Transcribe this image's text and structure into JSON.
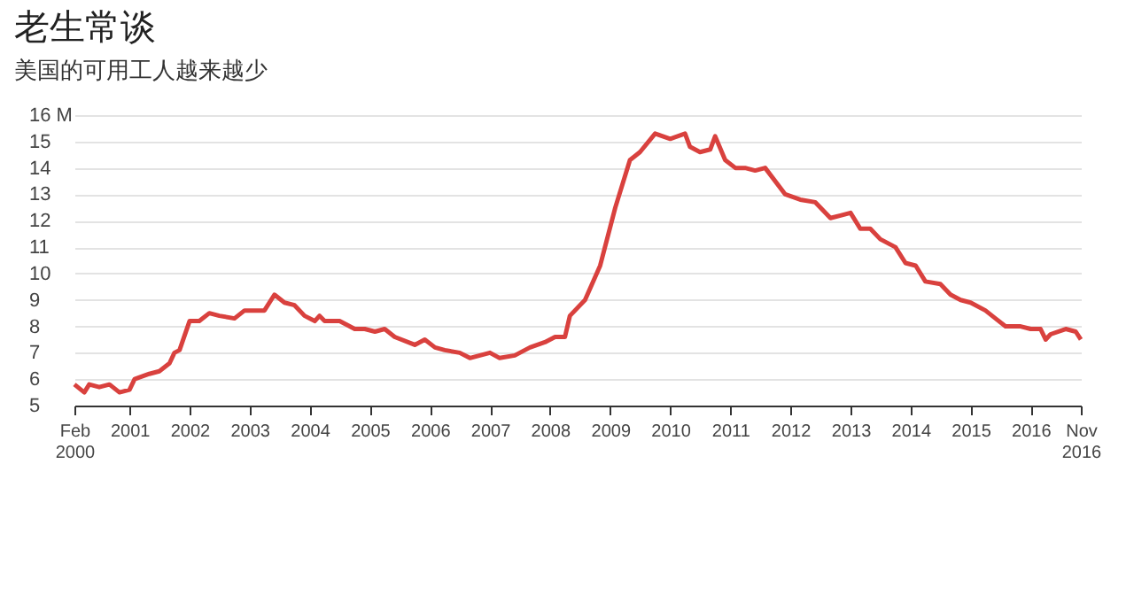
{
  "chart_data": {
    "type": "line",
    "title": "老生常谈",
    "subtitle": "美国的可用工人越来越少",
    "x": [
      "2000-02",
      "2000-04",
      "2000-05",
      "2000-07",
      "2000-09",
      "2000-11",
      "2001-01",
      "2001-02",
      "2001-05",
      "2001-07",
      "2001-09",
      "2001-10",
      "2001-11",
      "2002-01",
      "2002-03",
      "2002-05",
      "2002-07",
      "2002-10",
      "2002-12",
      "2003-02",
      "2003-04",
      "2003-06",
      "2003-08",
      "2003-10",
      "2003-12",
      "2004-02",
      "2004-03",
      "2004-04",
      "2004-07",
      "2004-10",
      "2004-12",
      "2005-02",
      "2005-04",
      "2005-06",
      "2005-10",
      "2005-12",
      "2006-02",
      "2006-04",
      "2006-07",
      "2006-09",
      "2006-11",
      "2007-01",
      "2007-03",
      "2007-06",
      "2007-09",
      "2007-12",
      "2008-02",
      "2008-04",
      "2008-05",
      "2008-08",
      "2008-11",
      "2009-02",
      "2009-05",
      "2009-07",
      "2009-10",
      "2010-01",
      "2010-04",
      "2010-05",
      "2010-07",
      "2010-09",
      "2010-10",
      "2010-12",
      "2011-02",
      "2011-04",
      "2011-06",
      "2011-08",
      "2011-12",
      "2012-03",
      "2012-06",
      "2012-09",
      "2012-11",
      "2013-01",
      "2013-03",
      "2013-05",
      "2013-07",
      "2013-10",
      "2013-12",
      "2014-02",
      "2014-04",
      "2014-07",
      "2014-09",
      "2014-11",
      "2015-01",
      "2015-04",
      "2015-06",
      "2015-08",
      "2015-11",
      "2016-01",
      "2016-03",
      "2016-04",
      "2016-05",
      "2016-08",
      "2016-10",
      "2016-11"
    ],
    "series": [
      {
        "color": "#d9413e",
        "values": [
          5.8,
          5.5,
          5.8,
          5.7,
          5.8,
          5.5,
          5.6,
          6.0,
          6.2,
          6.3,
          6.6,
          7.0,
          7.1,
          8.2,
          8.2,
          8.5,
          8.4,
          8.3,
          8.6,
          8.6,
          8.6,
          9.2,
          8.9,
          8.8,
          8.4,
          8.2,
          8.4,
          8.2,
          8.2,
          7.9,
          7.9,
          7.8,
          7.9,
          7.6,
          7.3,
          7.5,
          7.2,
          7.1,
          7.0,
          6.8,
          6.9,
          7.0,
          6.8,
          6.9,
          7.2,
          7.4,
          7.6,
          7.6,
          8.4,
          9.0,
          10.3,
          12.5,
          14.3,
          14.6,
          15.3,
          15.1,
          15.3,
          14.8,
          14.6,
          14.7,
          15.2,
          14.3,
          14.0,
          14.0,
          13.9,
          14.0,
          13.0,
          12.8,
          12.7,
          12.1,
          12.2,
          12.3,
          11.7,
          11.7,
          11.3,
          11.0,
          10.4,
          10.3,
          9.7,
          9.6,
          9.2,
          9.0,
          8.9,
          8.6,
          8.3,
          8.0,
          8.0,
          7.9,
          7.9,
          7.5,
          7.7,
          7.9,
          7.8,
          7.5
        ]
      }
    ],
    "xlim": [
      "2000-02",
      "2016-11"
    ],
    "xticks": [
      {
        "value": "2000-02",
        "label": "Feb 2000"
      },
      "2001",
      "2002",
      "2003",
      "2004",
      "2005",
      "2006",
      "2007",
      "2008",
      "2009",
      "2010",
      "2011",
      "2012",
      "2013",
      "2014",
      "2015",
      "2016",
      {
        "value": "2016-11",
        "label": "Nov 2016"
      }
    ],
    "ylim": [
      5,
      16
    ],
    "yticks": [
      5,
      6,
      7,
      8,
      9,
      10,
      11,
      12,
      13,
      14,
      15,
      {
        "value": 16,
        "label": "16 M"
      }
    ],
    "grid": "y",
    "legend": false,
    "marker": "none",
    "line_style": "solid"
  }
}
